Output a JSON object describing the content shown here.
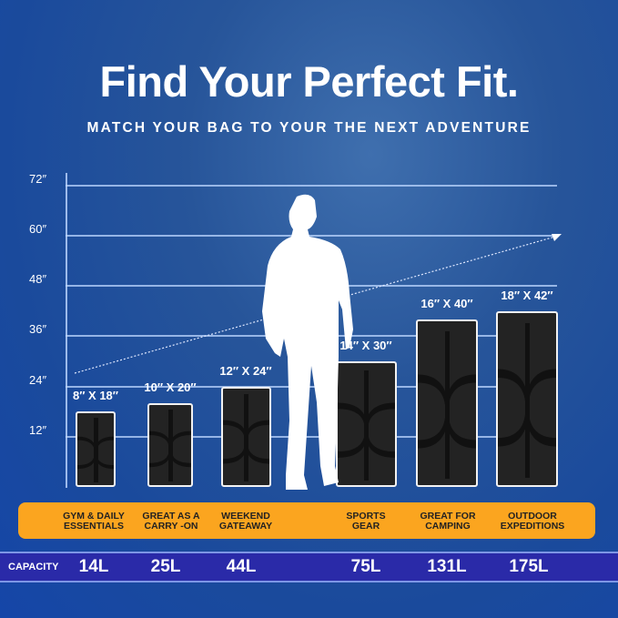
{
  "title": "Find Your Perfect Fit.",
  "subtitle": "MATCH YOUR BAG TO YOUR THE NEXT ADVENTURE",
  "axis_ticks": [
    "72″",
    "60″",
    "48″",
    "36″",
    "24″",
    "12″"
  ],
  "bags": [
    {
      "size": "8″ X 18″",
      "use": [
        "GYM & DAILY",
        "ESSENTIALS"
      ],
      "capacity": "14L",
      "height_in": 18,
      "width_in": 8
    },
    {
      "size": "10″ X 20″",
      "use": [
        "GREAT AS A",
        "CARRY -ON"
      ],
      "capacity": "25L",
      "height_in": 20,
      "width_in": 10
    },
    {
      "size": "12″ X 24″",
      "use": [
        "WEEKEND",
        "GATEAWAY"
      ],
      "capacity": "44L",
      "height_in": 24,
      "width_in": 12
    },
    {
      "size": "14″ X 30″",
      "use": [
        "SPORTS",
        "GEAR"
      ],
      "capacity": "75L",
      "height_in": 30,
      "width_in": 14
    },
    {
      "size": "16″ X 40″",
      "use": [
        "GREAT FOR",
        "CAMPING"
      ],
      "capacity": "131L",
      "height_in": 40,
      "width_in": 16
    },
    {
      "size": "18″ X 42″",
      "use": [
        "OUTDOOR",
        "EXPEDITIONS"
      ],
      "capacity": "175L",
      "height_in": 42,
      "width_in": 18
    }
  ],
  "capacity_label": "CAPACITY",
  "colors": {
    "background": "#1a4a9c",
    "band": "#fba51f",
    "capacity_bar": "#2a2aa8",
    "bag": "#232323"
  }
}
